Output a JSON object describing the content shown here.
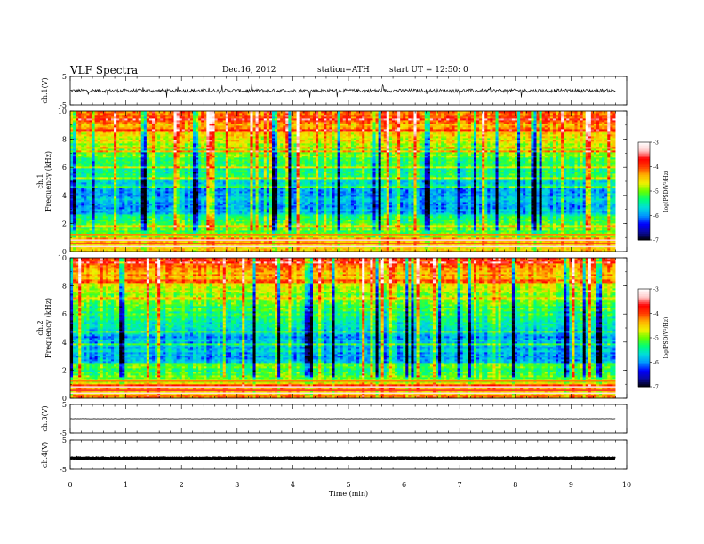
{
  "header": {
    "title": "VLF  Spectra",
    "date": "Dec.16, 2012",
    "station": "station=ATH",
    "start": "start  UT  =   12:50: 0"
  },
  "chart_data": [
    {
      "type": "line",
      "panel": "ch1-waveform",
      "ylabel": "ch.1(V)",
      "ylim": [
        -5,
        5
      ],
      "yticks": [
        "5",
        "-5"
      ],
      "xlim": [
        0,
        10
      ],
      "x_end": 9.8,
      "baseline": 0,
      "noise": 0.6,
      "spikes": 1
    },
    {
      "type": "heatmap",
      "panel": "ch1-spectrogram",
      "ylabel": "ch.1",
      "ylabel2": "Frequency  (kHz)",
      "ylim": [
        0,
        10
      ],
      "yticks": [
        "0",
        "2",
        "4",
        "6",
        "8",
        "10"
      ],
      "xlim": [
        0,
        10
      ],
      "x_end": 9.8,
      "colorbar": {
        "label": "log(PSD(V²/Hz)",
        "range": [
          -7,
          -3
        ],
        "ticks": [
          "-3",
          "-4",
          "-5",
          "-6",
          "-7"
        ]
      }
    },
    {
      "type": "heatmap",
      "panel": "ch2-spectrogram",
      "ylabel": "ch.2",
      "ylabel2": "Frequency  (kHz)",
      "ylim": [
        0,
        10
      ],
      "yticks": [
        "0",
        "2",
        "4",
        "6",
        "8",
        "10"
      ],
      "xlim": [
        0,
        10
      ],
      "x_end": 9.8,
      "colorbar": {
        "label": "log(PSD(V²/Hz)",
        "range": [
          -7,
          -3
        ],
        "ticks": [
          "-3",
          "-4",
          "-5",
          "-6",
          "-7"
        ]
      }
    },
    {
      "type": "line",
      "panel": "ch3-waveform",
      "ylabel": "ch.3(V)",
      "ylim": [
        -5,
        5
      ],
      "yticks": [
        "5",
        "-5"
      ],
      "xlim": [
        0,
        10
      ],
      "x_end": 9.8,
      "baseline": 0,
      "noise": 0.05,
      "spikes": 0
    },
    {
      "type": "line",
      "panel": "ch4-waveform",
      "ylabel": "ch.4(V)",
      "ylim": [
        -5,
        5
      ],
      "yticks": [
        "5",
        "-5"
      ],
      "xlim": [
        0,
        10
      ],
      "x_end": 9.8,
      "baseline": -1.2,
      "noise": 0.15,
      "spikes": 0
    }
  ],
  "xaxis": {
    "label": "Time  (min)",
    "ticks": [
      "0",
      "1",
      "2",
      "3",
      "4",
      "5",
      "6",
      "7",
      "8",
      "9",
      "10"
    ]
  },
  "colors": {
    "colormap": [
      "#000000",
      "#0a0aa0",
      "#0000ff",
      "#0096ff",
      "#00dcdc",
      "#00ff78",
      "#64ff00",
      "#f0f000",
      "#ffb400",
      "#ff3c00",
      "#ff0000",
      "#ffc8c8",
      "#ffffff"
    ],
    "line": "#000000"
  }
}
